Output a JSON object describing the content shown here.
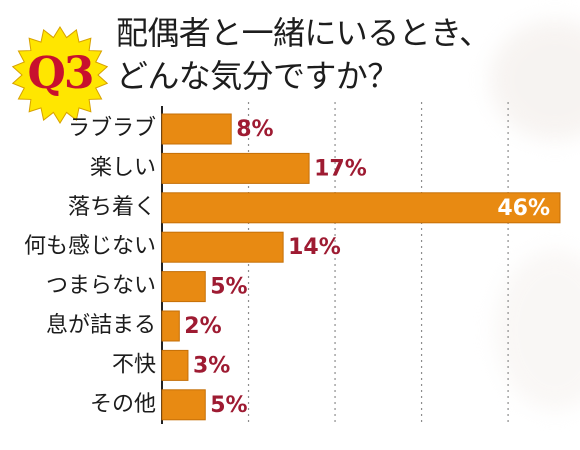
{
  "header": {
    "badge": "Q3",
    "title_line1": "配偶者と一緒にいるとき、",
    "title_line2": "どんな気分ですか？"
  },
  "colors": {
    "bar": "#e88a12",
    "bar_stroke": "#c56f07",
    "badge_red": "#c8102e",
    "badge_yellow": "#ffe600",
    "value_red": "#9e1b32",
    "axis": "#222222",
    "grid": "#8d8d8d"
  },
  "chart_data": {
    "type": "bar",
    "orientation": "horizontal",
    "title": "配偶者と一緒にいるとき、どんな気分ですか？",
    "categories": [
      "ラブラブ",
      "楽しい",
      "落ち着く",
      "何も感じない",
      "つまらない",
      "息が詰まる",
      "不快",
      "その他"
    ],
    "values": [
      8,
      17,
      46,
      14,
      5,
      2,
      3,
      5
    ],
    "value_labels": [
      "8%",
      "17%",
      "46%",
      "14%",
      "5%",
      "2%",
      "3%",
      "5%"
    ],
    "unit": "%",
    "xlim": [
      0,
      46
    ],
    "grid": true,
    "grid_style": "vertical-dashed",
    "inside_label_index": 2
  }
}
